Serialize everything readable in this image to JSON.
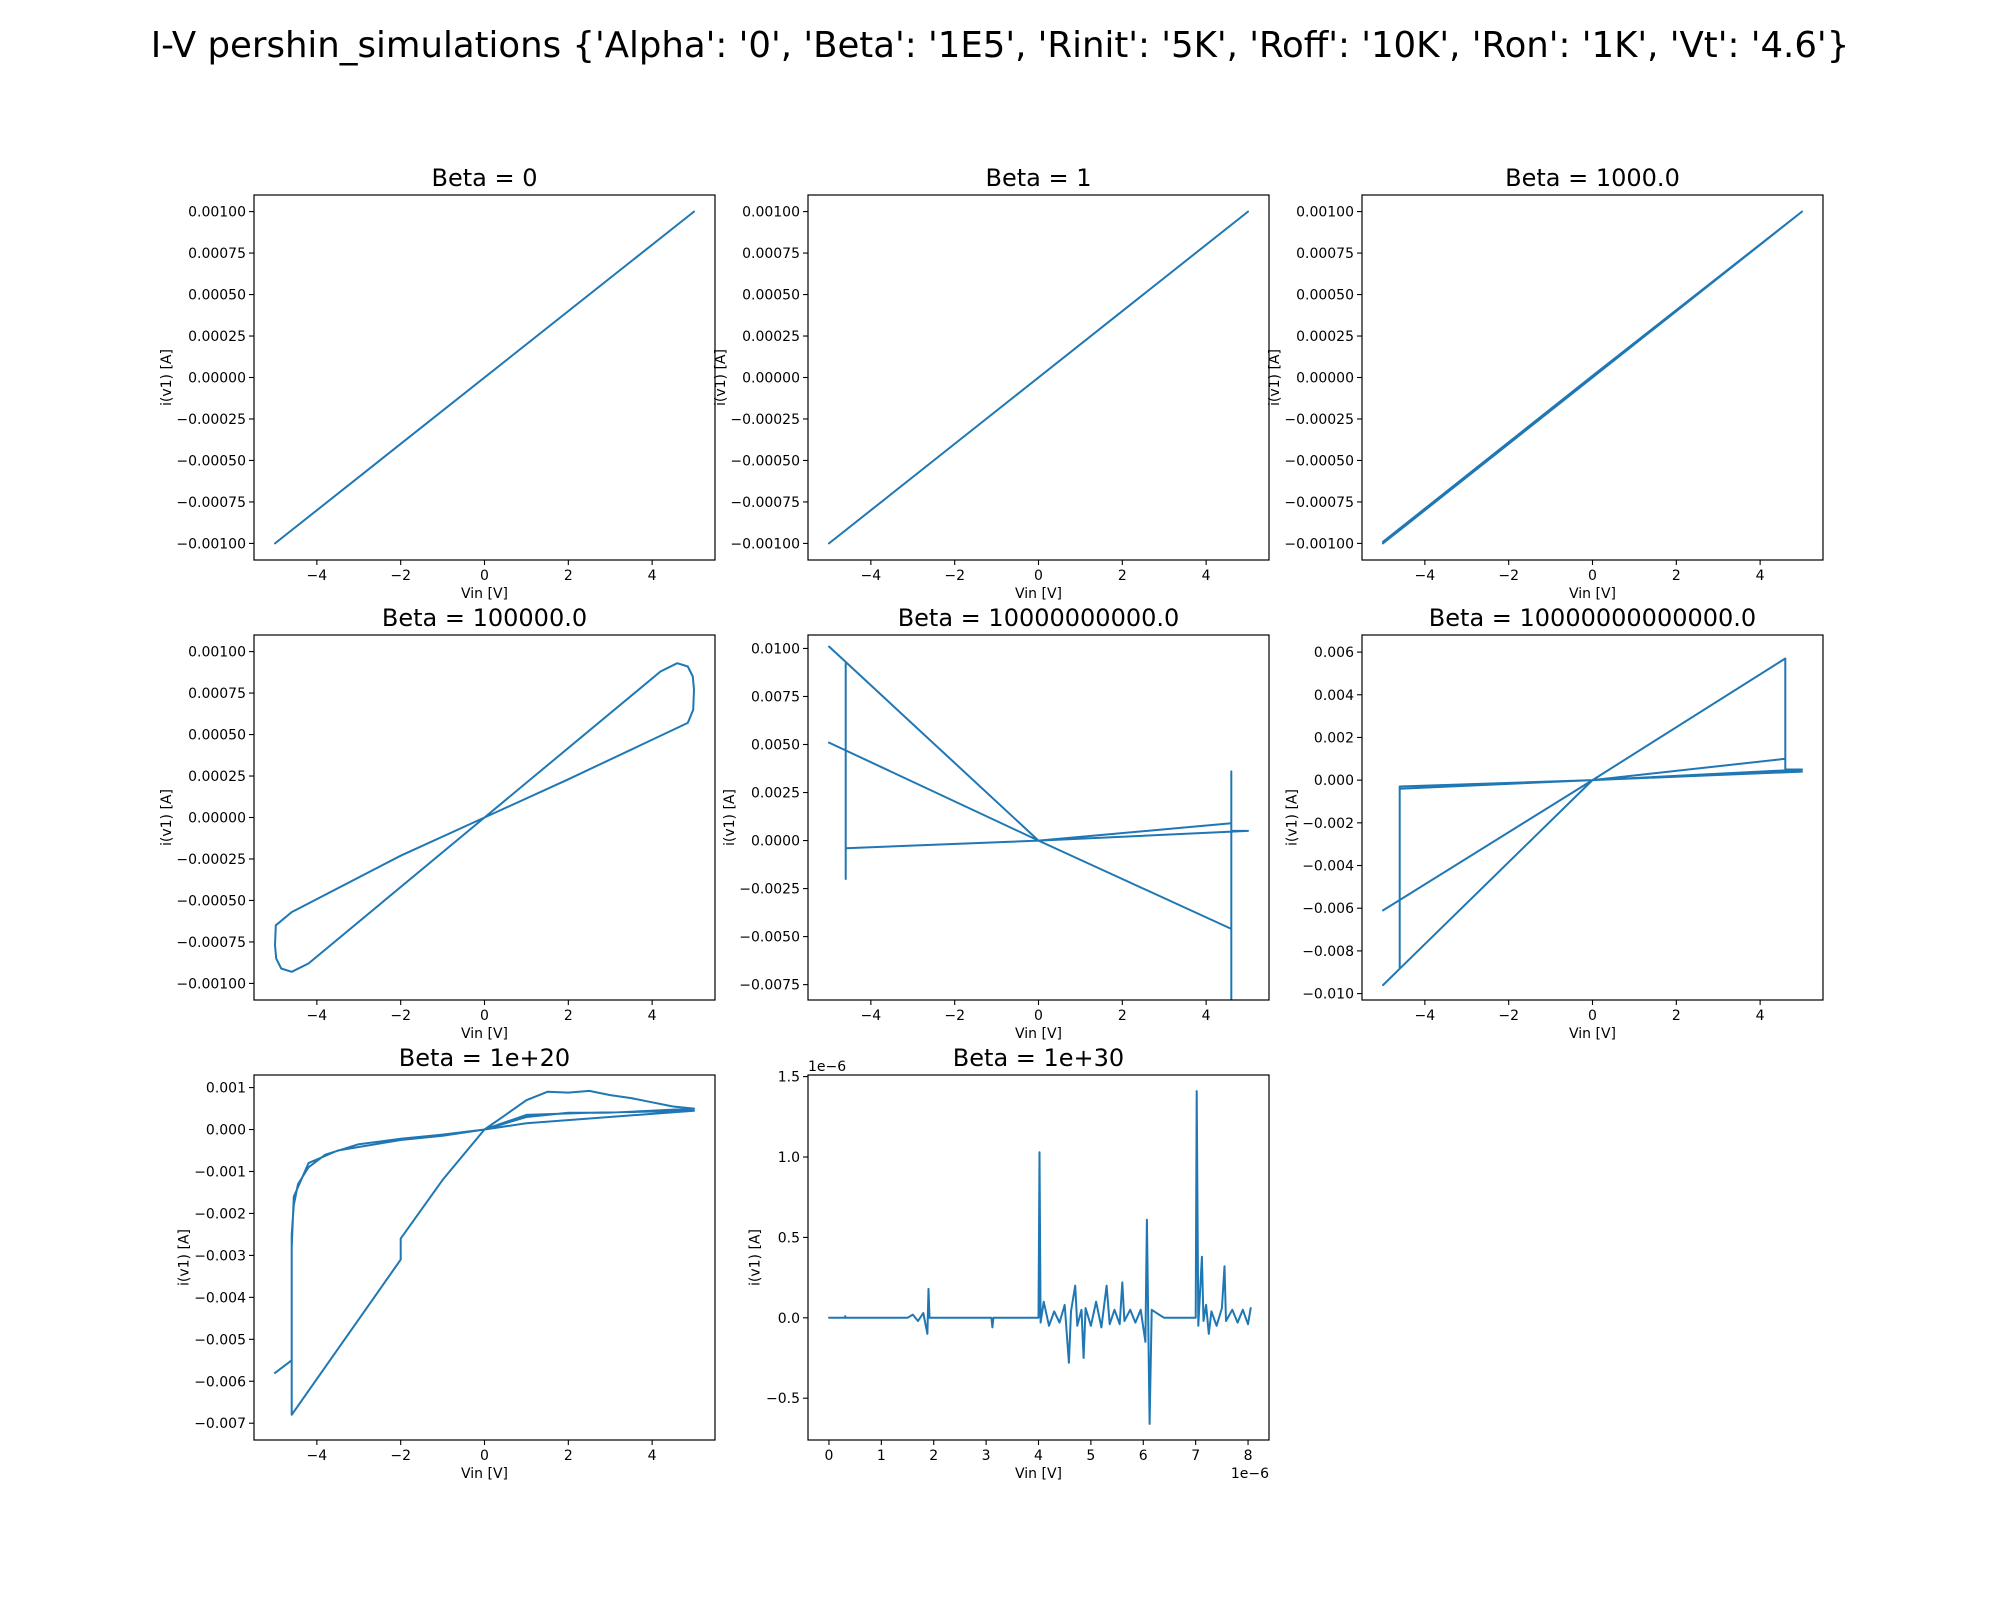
{
  "figure": {
    "suptitle": "I-V pershin_simulations {'Alpha': '0', 'Beta': '1E5', 'Rinit': '5K', 'Roff': '10K', 'Ron': '1K', 'Vt': '4.6'}",
    "line_color": "#1f77b4"
  },
  "chart_data": [
    {
      "type": "line",
      "title": "Beta = 0",
      "xlabel": "Vin [V]",
      "ylabel": "i(v1) [A]",
      "xlim": [
        -5.5,
        5.5
      ],
      "ylim": [
        -0.0011,
        0.0011
      ],
      "xticks": [
        -4,
        -2,
        0,
        2,
        4
      ],
      "xticklabels": [
        "−4",
        "−2",
        "0",
        "2",
        "4"
      ],
      "yticks": [
        -0.001,
        -0.00075,
        -0.0005,
        -0.00025,
        0,
        0.00025,
        0.0005,
        0.00075,
        0.001
      ],
      "yticklabels": [
        "−0.00100",
        "−0.00075",
        "−0.00050",
        "−0.00025",
        "0.00000",
        "0.00025",
        "0.00050",
        "0.00075",
        "0.00100"
      ],
      "series": [
        {
          "points": [
            [
              -5,
              -0.001
            ],
            [
              5,
              0.001
            ]
          ]
        }
      ]
    },
    {
      "type": "line",
      "title": "Beta = 1",
      "xlabel": "Vin [V]",
      "ylabel": "i(v1) [A]",
      "xlim": [
        -5.5,
        5.5
      ],
      "ylim": [
        -0.0011,
        0.0011
      ],
      "xticks": [
        -4,
        -2,
        0,
        2,
        4
      ],
      "xticklabels": [
        "−4",
        "−2",
        "0",
        "2",
        "4"
      ],
      "yticks": [
        -0.001,
        -0.00075,
        -0.0005,
        -0.00025,
        0,
        0.00025,
        0.0005,
        0.00075,
        0.001
      ],
      "yticklabels": [
        "−0.00100",
        "−0.00075",
        "−0.00050",
        "−0.00025",
        "0.00000",
        "0.00025",
        "0.00050",
        "0.00075",
        "0.00100"
      ],
      "series": [
        {
          "points": [
            [
              -5,
              -0.001
            ],
            [
              5,
              0.001
            ]
          ]
        }
      ]
    },
    {
      "type": "line",
      "title": "Beta = 1000.0",
      "xlabel": "Vin [V]",
      "ylabel": "i(v1) [A]",
      "xlim": [
        -5.5,
        5.5
      ],
      "ylim": [
        -0.0011,
        0.0011
      ],
      "xticks": [
        -4,
        -2,
        0,
        2,
        4
      ],
      "xticklabels": [
        "−4",
        "−2",
        "0",
        "2",
        "4"
      ],
      "yticks": [
        -0.001,
        -0.00075,
        -0.0005,
        -0.00025,
        0,
        0.00025,
        0.0005,
        0.00075,
        0.001
      ],
      "yticklabels": [
        "−0.00100",
        "−0.00075",
        "−0.00050",
        "−0.00025",
        "0.00000",
        "0.00025",
        "0.00050",
        "0.00075",
        "0.00100"
      ],
      "series": [
        {
          "points": [
            [
              -5,
              -0.001
            ],
            [
              0,
              0
            ],
            [
              5,
              0.001
            ],
            [
              0,
              1e-05
            ],
            [
              -5,
              -0.00099
            ]
          ]
        }
      ]
    },
    {
      "type": "line",
      "title": "Beta = 100000.0",
      "xlabel": "Vin [V]",
      "ylabel": "i(v1) [A]",
      "xlim": [
        -5.5,
        5.5
      ],
      "ylim": [
        -0.0011,
        0.0011
      ],
      "xticks": [
        -4,
        -2,
        0,
        2,
        4
      ],
      "xticklabels": [
        "−4",
        "−2",
        "0",
        "2",
        "4"
      ],
      "yticks": [
        -0.001,
        -0.00075,
        -0.0005,
        -0.00025,
        0,
        0.00025,
        0.0005,
        0.00075,
        0.001
      ],
      "yticklabels": [
        "−0.00100",
        "−0.00075",
        "−0.00050",
        "−0.00025",
        "0.00000",
        "0.00025",
        "0.00050",
        "0.00075",
        "0.00100"
      ],
      "series": [
        {
          "points": [
            [
              0,
              0
            ],
            [
              4.2,
              0.00088
            ],
            [
              4.6,
              0.00093
            ],
            [
              4.85,
              0.00091
            ],
            [
              4.97,
              0.00085
            ],
            [
              5,
              0.00077
            ],
            [
              4.98,
              0.00065
            ],
            [
              4.85,
              0.00057
            ],
            [
              2,
              0.00023
            ],
            [
              0,
              0
            ],
            [
              -2,
              -0.00023
            ],
            [
              -4.6,
              -0.00057
            ],
            [
              -4.98,
              -0.00065
            ],
            [
              -5,
              -0.00077
            ],
            [
              -4.97,
              -0.00085
            ],
            [
              -4.85,
              -0.00091
            ],
            [
              -4.6,
              -0.00093
            ],
            [
              -4.2,
              -0.00088
            ],
            [
              0,
              0
            ]
          ]
        }
      ]
    },
    {
      "type": "line",
      "title": "Beta = 10000000000.0",
      "xlabel": "Vin [V]",
      "ylabel": "i(v1) [A]",
      "xlim": [
        -5.5,
        5.5
      ],
      "ylim": [
        -0.0083,
        0.0107
      ],
      "xticks": [
        -4,
        -2,
        0,
        2,
        4
      ],
      "xticklabels": [
        "−4",
        "−2",
        "0",
        "2",
        "4"
      ],
      "yticks": [
        -0.0075,
        -0.005,
        -0.0025,
        0,
        0.0025,
        0.005,
        0.0075,
        0.01
      ],
      "yticklabels": [
        "−0.0075",
        "−0.0050",
        "−0.0025",
        "0.0000",
        "0.0025",
        "0.0050",
        "0.0075",
        "0.0100"
      ],
      "series": [
        {
          "points": [
            [
              -5,
              0.0101
            ],
            [
              0,
              0
            ],
            [
              4.6,
              -0.0046
            ],
            [
              4.6,
              -0.0086
            ],
            [
              4.6,
              0.0036
            ],
            [
              4.6,
              0.0005
            ],
            [
              5,
              0.0005
            ],
            [
              0,
              0
            ],
            [
              -4.6,
              -0.0004
            ],
            [
              -4.6,
              -0.002
            ],
            [
              -4.6,
              0.0092
            ],
            [
              -4.6,
              -0.0004
            ],
            [
              0,
              0
            ],
            [
              4.6,
              0.0009
            ],
            [
              0,
              0
            ],
            [
              -5,
              0.0051
            ]
          ]
        }
      ]
    },
    {
      "type": "line",
      "title": "Beta = 10000000000000.0",
      "xlabel": "Vin [V]",
      "ylabel": "i(v1) [A]",
      "xlim": [
        -5.5,
        5.5
      ],
      "ylim": [
        -0.0103,
        0.0068
      ],
      "xticks": [
        -4,
        -2,
        0,
        2,
        4
      ],
      "xticklabels": [
        "−4",
        "−2",
        "0",
        "2",
        "4"
      ],
      "yticks": [
        -0.01,
        -0.008,
        -0.006,
        -0.004,
        -0.002,
        0,
        0.002,
        0.004,
        0.006
      ],
      "yticklabels": [
        "−0.010",
        "−0.008",
        "−0.006",
        "−0.004",
        "−0.002",
        "0.000",
        "0.002",
        "0.004",
        "0.006"
      ],
      "series": [
        {
          "points": [
            [
              -5,
              -0.0096
            ],
            [
              0,
              0
            ],
            [
              4.6,
              0.0057
            ],
            [
              4.6,
              0.0005
            ],
            [
              5,
              0.0005
            ],
            [
              0,
              0
            ],
            [
              -4.6,
              -0.0004
            ],
            [
              -4.6,
              -0.0088
            ],
            [
              -4.6,
              -0.0003
            ],
            [
              0,
              0
            ],
            [
              4.6,
              0.001
            ],
            [
              4.6,
              0.0004
            ],
            [
              5,
              0.0004
            ],
            [
              0,
              0
            ],
            [
              -5,
              -0.0061
            ]
          ]
        }
      ]
    },
    {
      "type": "line",
      "title": "Beta = 1e+20",
      "xlabel": "Vin [V]",
      "ylabel": "i(v1) [A]",
      "xlim": [
        -5.5,
        5.5
      ],
      "ylim": [
        -0.0074,
        0.0013
      ],
      "xticks": [
        -4,
        -2,
        0,
        2,
        4
      ],
      "xticklabels": [
        "−4",
        "−2",
        "0",
        "2",
        "4"
      ],
      "yticks": [
        -0.007,
        -0.006,
        -0.005,
        -0.004,
        -0.003,
        -0.002,
        -0.001,
        0,
        0.001
      ],
      "yticklabels": [
        "−0.007",
        "−0.006",
        "−0.005",
        "−0.004",
        "−0.003",
        "−0.002",
        "−0.001",
        "0.000",
        "0.001"
      ],
      "series": [
        {
          "points": [
            [
              0,
              0
            ],
            [
              0.5,
              0.00035
            ],
            [
              1,
              0.0007
            ],
            [
              1.5,
              0.0009
            ],
            [
              2,
              0.00088
            ],
            [
              2.5,
              0.00092
            ],
            [
              3,
              0.00082
            ],
            [
              3.5,
              0.00075
            ],
            [
              4,
              0.00065
            ],
            [
              4.5,
              0.00055
            ],
            [
              5,
              0.0005
            ],
            [
              3,
              0.0004
            ],
            [
              2,
              0.0004
            ],
            [
              1,
              0.0003
            ],
            [
              0,
              0
            ],
            [
              -1,
              -0.00012
            ],
            [
              -2,
              -0.00022
            ],
            [
              -3,
              -0.00035
            ],
            [
              -3.8,
              -0.0006
            ],
            [
              -4.2,
              -0.0009
            ],
            [
              -4.45,
              -0.0013
            ],
            [
              -4.55,
              -0.0018
            ],
            [
              -4.6,
              -0.0025
            ],
            [
              -4.6,
              -0.0068
            ],
            [
              -2,
              -0.0031
            ],
            [
              -2,
              -0.0026
            ],
            [
              -1,
              -0.0012
            ],
            [
              0,
              0
            ],
            [
              1,
              0.00035
            ],
            [
              2.5,
              0.0004
            ],
            [
              5,
              0.00045
            ],
            [
              1,
              0.00015
            ],
            [
              0,
              0
            ],
            [
              -1,
              -0.00015
            ],
            [
              -2,
              -0.00025
            ],
            [
              -3.5,
              -0.0005
            ],
            [
              -4.2,
              -0.0008
            ],
            [
              -4.55,
              -0.0016
            ],
            [
              -4.6,
              -0.0028
            ],
            [
              -4.6,
              -0.0055
            ],
            [
              -5,
              -0.0058
            ]
          ]
        }
      ]
    },
    {
      "type": "line",
      "title": "Beta = 1e+30",
      "xlabel": "Vin [V]",
      "ylabel": "i(v1) [A]",
      "xlim": [
        -0.4,
        8.4
      ],
      "ylim": [
        -0.76,
        1.51
      ],
      "xticks": [
        0,
        1,
        2,
        3,
        4,
        5,
        6,
        7,
        8
      ],
      "xticklabels": [
        "0",
        "1",
        "2",
        "3",
        "4",
        "5",
        "6",
        "7",
        "8"
      ],
      "yticks": [
        -0.5,
        0,
        0.5,
        1,
        1.5
      ],
      "yticklabels": [
        "−0.5",
        "0.0",
        "0.5",
        "1.0",
        "1.5"
      ],
      "x_offset_label": "1e−6",
      "y_offset_label": "1e−6",
      "series": [
        {
          "points": [
            [
              0,
              0
            ],
            [
              0.3,
              0
            ],
            [
              0.31,
              0.01
            ],
            [
              0.32,
              0
            ],
            [
              1,
              0
            ],
            [
              1.5,
              0
            ],
            [
              1.6,
              0.02
            ],
            [
              1.7,
              -0.02
            ],
            [
              1.8,
              0.03
            ],
            [
              1.88,
              -0.1
            ],
            [
              1.9,
              0.18
            ],
            [
              1.92,
              0
            ],
            [
              2.5,
              0
            ],
            [
              3.1,
              0
            ],
            [
              3.12,
              -0.06
            ],
            [
              3.14,
              0
            ],
            [
              4,
              0
            ],
            [
              4.02,
              1.03
            ],
            [
              4.04,
              -0.03
            ],
            [
              4.1,
              0.1
            ],
            [
              4.2,
              -0.05
            ],
            [
              4.3,
              0.04
            ],
            [
              4.4,
              -0.03
            ],
            [
              4.5,
              0.08
            ],
            [
              4.58,
              -0.28
            ],
            [
              4.62,
              0.04
            ],
            [
              4.7,
              0.2
            ],
            [
              4.74,
              -0.05
            ],
            [
              4.82,
              0.05
            ],
            [
              4.86,
              -0.25
            ],
            [
              4.9,
              0.06
            ],
            [
              5,
              -0.05
            ],
            [
              5.1,
              0.1
            ],
            [
              5.2,
              -0.06
            ],
            [
              5.3,
              0.2
            ],
            [
              5.36,
              -0.04
            ],
            [
              5.45,
              0.05
            ],
            [
              5.55,
              -0.04
            ],
            [
              5.6,
              0.22
            ],
            [
              5.64,
              -0.02
            ],
            [
              5.75,
              0.05
            ],
            [
              5.85,
              -0.03
            ],
            [
              5.95,
              0.05
            ],
            [
              6.04,
              -0.15
            ],
            [
              6.07,
              0.61
            ],
            [
              6.12,
              -0.66
            ],
            [
              6.16,
              0.05
            ],
            [
              6.3,
              0.02
            ],
            [
              6.4,
              0
            ],
            [
              7,
              0
            ],
            [
              7.02,
              1.41
            ],
            [
              7.05,
              -0.05
            ],
            [
              7.12,
              0.38
            ],
            [
              7.15,
              -0.02
            ],
            [
              7.2,
              0.08
            ],
            [
              7.25,
              -0.1
            ],
            [
              7.3,
              0.04
            ],
            [
              7.4,
              -0.05
            ],
            [
              7.5,
              0.06
            ],
            [
              7.55,
              0.32
            ],
            [
              7.58,
              -0.02
            ],
            [
              7.7,
              0.05
            ],
            [
              7.8,
              -0.03
            ],
            [
              7.9,
              0.05
            ],
            [
              8,
              -0.04
            ],
            [
              8.05,
              0.06
            ]
          ]
        }
      ]
    }
  ]
}
